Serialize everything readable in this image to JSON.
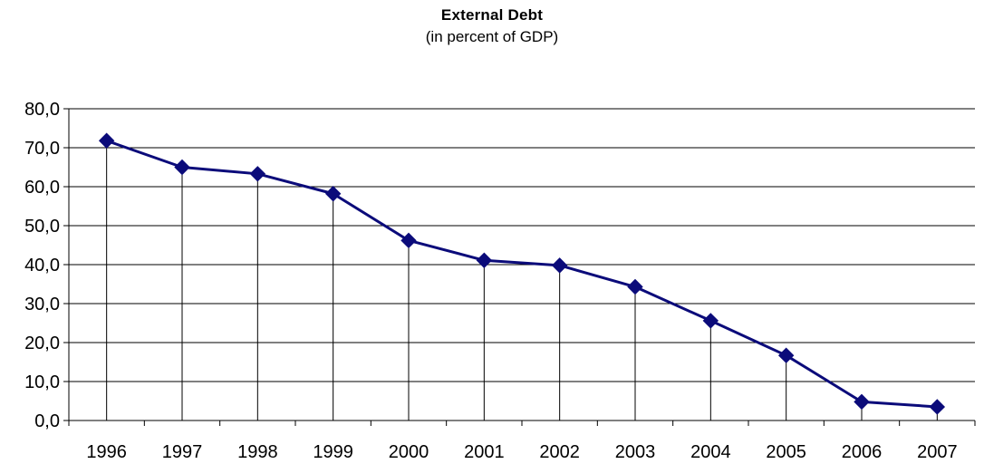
{
  "chart_data": {
    "type": "line",
    "title": "External Debt",
    "subtitle": "(in percent of GDP)",
    "xlabel": "",
    "ylabel": "",
    "categories": [
      "1996",
      "1997",
      "1998",
      "1999",
      "2000",
      "2001",
      "2002",
      "2003",
      "2004",
      "2005",
      "2006",
      "2007"
    ],
    "series": [
      {
        "values": [
          71.8,
          65.0,
          63.3,
          58.2,
          46.2,
          41.1,
          39.8,
          34.3,
          25.6,
          16.7,
          4.8,
          3.5
        ]
      }
    ],
    "ylim": [
      0,
      80
    ],
    "yticks": [
      "0,0",
      "10,0",
      "20,0",
      "30,0",
      "40,0",
      "50,0",
      "60,0",
      "70,0",
      "80,0"
    ],
    "grid": true,
    "drop_lines": true,
    "marker": "diamond",
    "line_color": "#0b0b7a",
    "legend": "none"
  }
}
